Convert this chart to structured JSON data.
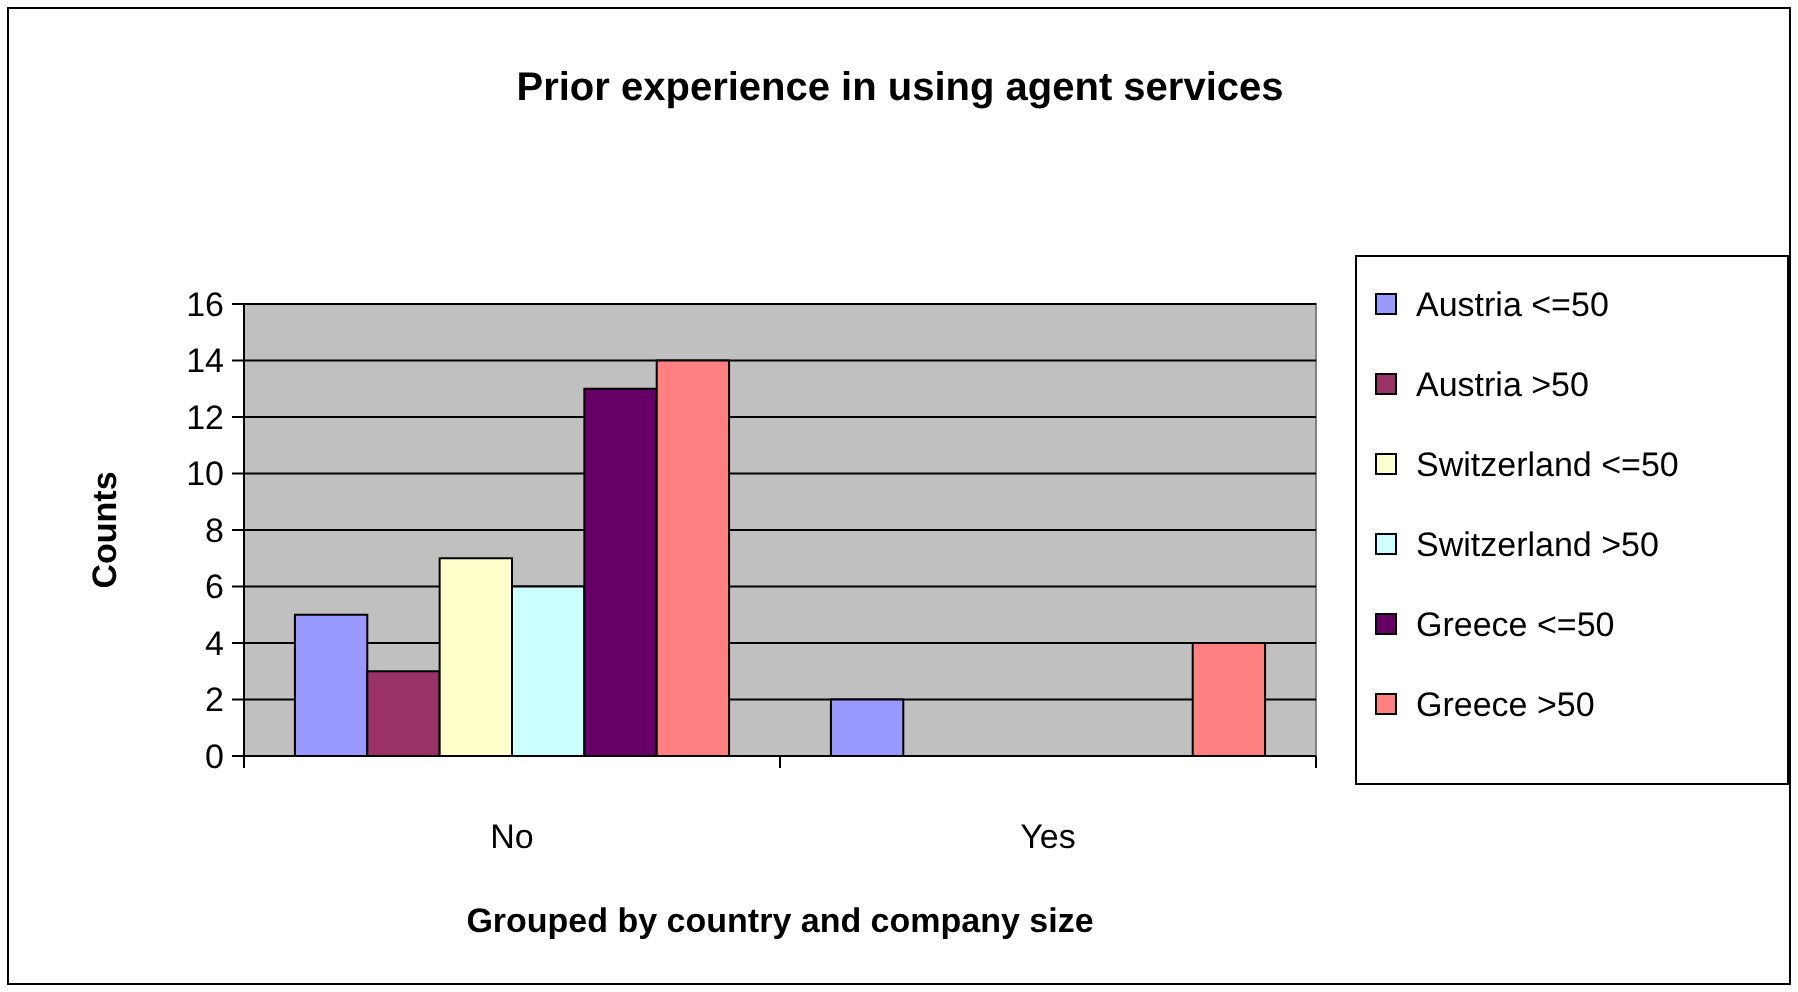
{
  "chart_data": {
    "type": "bar",
    "title": "Prior experience in using agent services",
    "xlabel": "Grouped by country and company size",
    "ylabel": "Counts",
    "categories": [
      "No",
      "Yes"
    ],
    "series": [
      {
        "name": "Austria <=50",
        "color": "#9999ff",
        "values": [
          5,
          2
        ]
      },
      {
        "name": "Austria >50",
        "color": "#993366",
        "values": [
          3,
          0
        ]
      },
      {
        "name": "Switzerland <=50",
        "color": "#ffffcc",
        "values": [
          7,
          0
        ]
      },
      {
        "name": "Switzerland >50",
        "color": "#ccffff",
        "values": [
          6,
          0
        ]
      },
      {
        "name": "Greece <=50",
        "color": "#660066",
        "values": [
          13,
          0
        ]
      },
      {
        "name": "Greece >50",
        "color": "#ff8080",
        "values": [
          14,
          4
        ]
      }
    ],
    "ylim": [
      0,
      16
    ],
    "yticks": [
      0,
      2,
      4,
      6,
      8,
      10,
      12,
      14,
      16
    ],
    "grid": "y",
    "legend": "right"
  }
}
